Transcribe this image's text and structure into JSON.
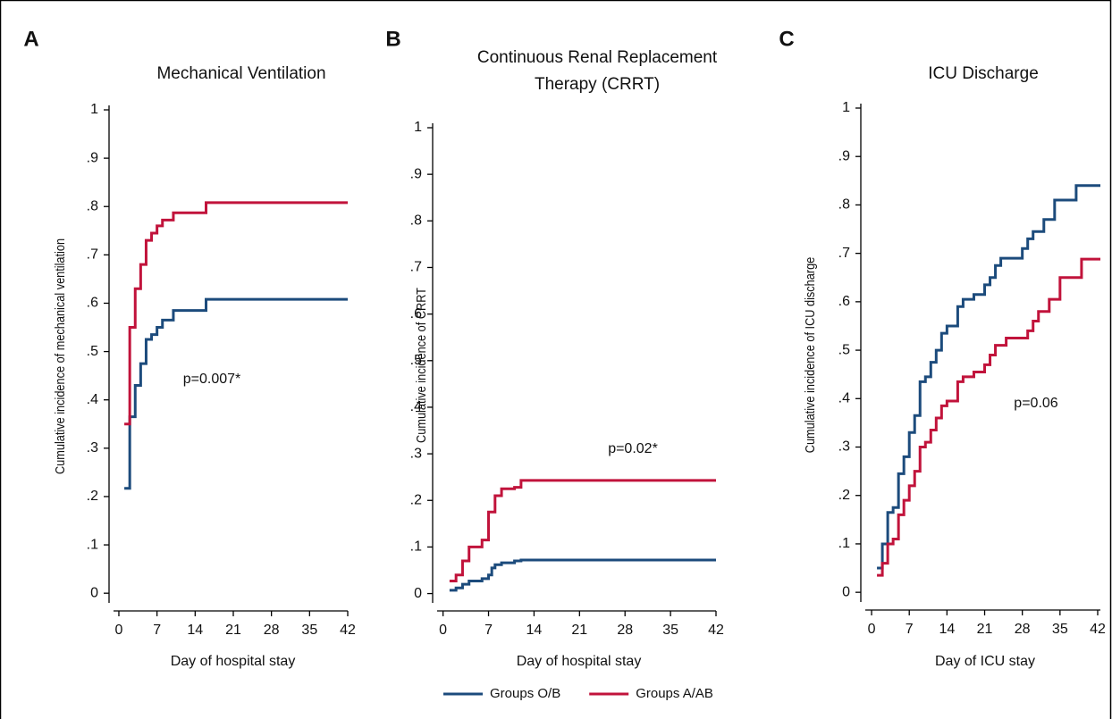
{
  "chart_data": [
    {
      "type": "line",
      "panel": "A",
      "title": "Mechanical Ventilation",
      "drawstyle": "steps-post",
      "xlabel": "Day of hospital stay",
      "ylabel": "Cumulative incidence of mechanical ventilation",
      "annotation": "p=0.007*",
      "legend": "bottom",
      "xlim": [
        -1.8,
        42
      ],
      "xticks": [
        0,
        7,
        14,
        21,
        28,
        35,
        42
      ],
      "ylim": [
        -0.02,
        1
      ],
      "yticks": [
        0,
        {
          "value": 0.1,
          "label": ".1"
        },
        {
          "value": 0.2,
          "label": ".2"
        },
        {
          "value": 0.3,
          "label": ".3"
        },
        {
          "value": 0.4,
          "label": ".4"
        },
        {
          "value": 0.5,
          "label": ".5"
        },
        {
          "value": 0.6,
          "label": ".6"
        },
        {
          "value": 0.7,
          "label": ".7"
        },
        {
          "value": 0.8,
          "label": ".8"
        },
        {
          "value": 0.9,
          "label": ".9"
        },
        1
      ],
      "series": [
        {
          "name": "Groups O/B",
          "color": "#1c4b7c",
          "x": [
            1,
            2,
            3,
            4,
            5,
            6,
            7,
            8,
            10,
            16,
            42
          ],
          "values": [
            0.217,
            0.365,
            0.43,
            0.475,
            0.525,
            0.535,
            0.55,
            0.565,
            0.585,
            0.608,
            0.608
          ]
        },
        {
          "name": "Groups A/AB",
          "color": "#c1133b",
          "x": [
            1,
            2,
            3,
            4,
            5,
            6,
            7,
            8,
            10,
            16,
            42
          ],
          "values": [
            0.35,
            0.55,
            0.63,
            0.68,
            0.73,
            0.745,
            0.76,
            0.772,
            0.787,
            0.808,
            0.808
          ]
        }
      ]
    },
    {
      "type": "line",
      "panel": "B",
      "title": [
        "Continuous Renal Replacement",
        "Therapy (CRRT)"
      ],
      "drawstyle": "steps-post",
      "xlabel": "Day of hospital stay",
      "ylabel": "Cumulative incidence of CRRT",
      "annotation": "p=0.02*",
      "xlim": [
        -1.6,
        42
      ],
      "xticks": [
        0,
        7,
        14,
        21,
        28,
        35,
        42
      ],
      "ylim": [
        -0.02,
        1
      ],
      "yticks": [
        0,
        {
          "value": 0.1,
          "label": ".1"
        },
        {
          "value": 0.2,
          "label": ".2"
        },
        {
          "value": 0.3,
          "label": ".3"
        },
        {
          "value": 0.4,
          "label": ".4"
        },
        {
          "value": 0.5,
          "label": ".5"
        },
        {
          "value": 0.6,
          "label": ".6"
        },
        {
          "value": 0.7,
          "label": ".7"
        },
        {
          "value": 0.8,
          "label": ".8"
        },
        {
          "value": 0.9,
          "label": ".9"
        },
        1
      ],
      "series": [
        {
          "color": "#1c4b7c",
          "x": [
            1,
            2,
            3,
            4,
            6,
            7,
            7.5,
            8,
            9,
            11,
            12,
            42
          ],
          "values": [
            0.007,
            0.012,
            0.02,
            0.027,
            0.032,
            0.04,
            0.055,
            0.062,
            0.066,
            0.07,
            0.072,
            0.072
          ]
        },
        {
          "color": "#c1133b",
          "x": [
            1,
            2,
            3,
            4,
            6,
            7,
            8,
            9,
            11,
            12,
            42
          ],
          "values": [
            0.027,
            0.04,
            0.07,
            0.1,
            0.115,
            0.175,
            0.21,
            0.225,
            0.228,
            0.243,
            0.243
          ]
        }
      ]
    },
    {
      "type": "line",
      "panel": "C",
      "title": "ICU Discharge",
      "drawstyle": "steps-post",
      "xlabel": "Day of ICU stay",
      "ylabel": "Cumulative incidence of ICU discharge",
      "annotation": "p=0.06",
      "xlim": [
        -2,
        42.5
      ],
      "xticks": [
        0,
        7,
        14,
        21,
        28,
        35,
        42
      ],
      "ylim": [
        -0.02,
        1
      ],
      "yticks": [
        0,
        {
          "value": 0.1,
          "label": ".1"
        },
        {
          "value": 0.2,
          "label": ".2"
        },
        {
          "value": 0.3,
          "label": ".3"
        },
        {
          "value": 0.4,
          "label": ".4"
        },
        {
          "value": 0.5,
          "label": ".5"
        },
        {
          "value": 0.6,
          "label": ".6"
        },
        {
          "value": 0.7,
          "label": ".7"
        },
        {
          "value": 0.8,
          "label": ".8"
        },
        {
          "value": 0.9,
          "label": ".9"
        },
        1
      ],
      "series": [
        {
          "color": "#1c4b7c",
          "x": [
            1,
            2,
            3,
            4,
            5,
            6,
            7,
            8,
            9,
            10,
            11,
            12,
            13,
            14,
            16,
            17,
            19,
            21,
            22,
            23,
            24,
            28,
            29,
            30,
            32,
            34,
            38,
            42.5
          ],
          "values": [
            0.05,
            0.1,
            0.165,
            0.175,
            0.245,
            0.28,
            0.33,
            0.365,
            0.435,
            0.445,
            0.475,
            0.5,
            0.535,
            0.55,
            0.59,
            0.605,
            0.615,
            0.635,
            0.65,
            0.675,
            0.69,
            0.71,
            0.73,
            0.745,
            0.77,
            0.81,
            0.84,
            0.84
          ]
        },
        {
          "color": "#c1133b",
          "x": [
            1,
            2,
            3,
            4,
            5,
            6,
            7,
            8,
            9,
            10,
            11,
            12,
            13,
            14,
            16,
            17,
            19,
            21,
            22,
            23,
            25,
            29,
            30,
            31,
            33,
            35,
            39,
            42.5
          ],
          "values": [
            0.035,
            0.06,
            0.1,
            0.11,
            0.16,
            0.19,
            0.22,
            0.25,
            0.3,
            0.31,
            0.335,
            0.36,
            0.385,
            0.395,
            0.435,
            0.445,
            0.455,
            0.47,
            0.49,
            0.51,
            0.525,
            0.54,
            0.56,
            0.58,
            0.605,
            0.65,
            0.688,
            0.688
          ]
        }
      ]
    }
  ]
}
